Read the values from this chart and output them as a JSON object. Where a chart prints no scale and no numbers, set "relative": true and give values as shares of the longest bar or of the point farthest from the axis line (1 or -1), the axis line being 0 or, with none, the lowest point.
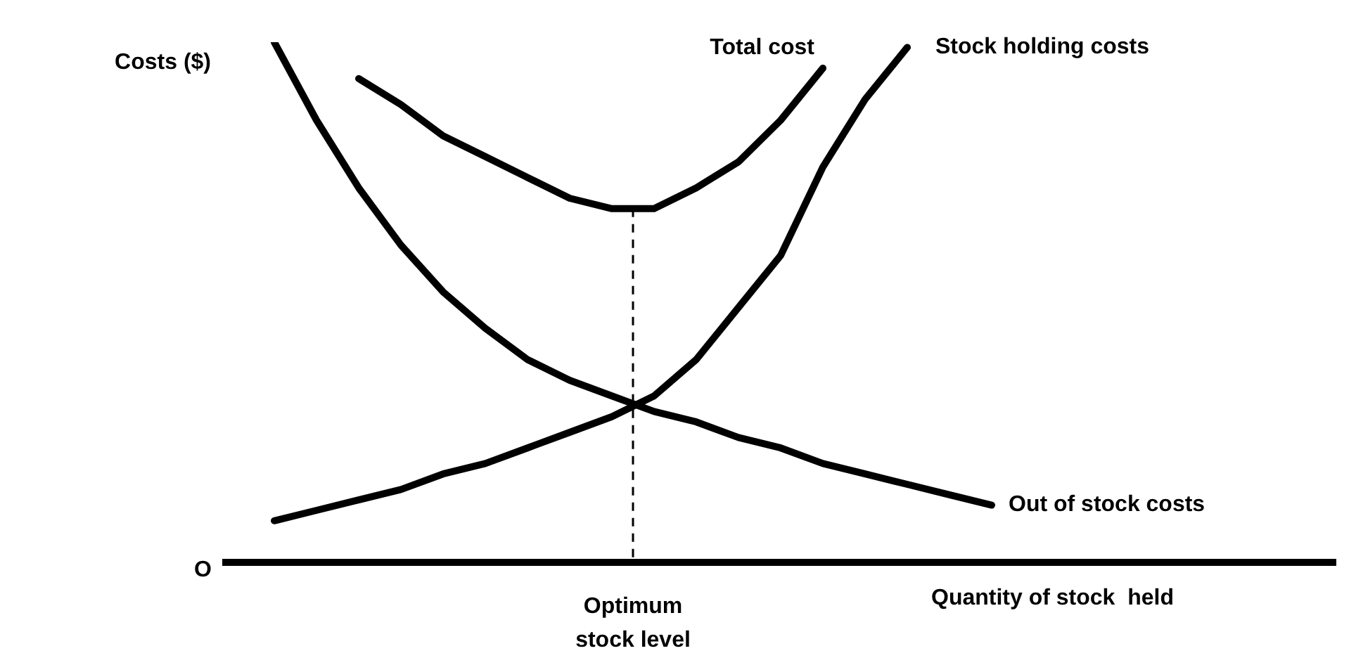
{
  "chart_data": {
    "type": "line",
    "relative": true,
    "ylabel": "Costs ($)",
    "xlabel": "Quantity of stock  held",
    "categories": [
      null,
      null,
      null,
      null,
      null,
      null,
      null,
      null,
      null,
      null,
      null,
      null,
      null,
      null,
      null,
      null,
      null,
      null
    ],
    "line_style": "solid",
    "series": [
      {
        "name": "Total cost",
        "color": "#000000",
        "values": [
          null,
          null,
          0.93,
          0.88,
          0.82,
          0.78,
          0.74,
          0.7,
          0.68,
          0.68,
          0.72,
          0.77,
          0.85,
          0.95,
          null,
          null,
          null,
          null
        ]
      },
      {
        "name": "Stock holding costs",
        "color": "#000000",
        "values": [
          0.08,
          0.1,
          0.12,
          0.14,
          0.17,
          0.19,
          0.22,
          0.25,
          0.28,
          0.32,
          0.39,
          0.49,
          0.59,
          0.76,
          0.89,
          0.99,
          null,
          null
        ]
      },
      {
        "name": "Out of stock costs",
        "color": "#000000",
        "values": [
          1,
          0.85,
          0.72,
          0.61,
          0.52,
          0.45,
          0.39,
          0.35,
          0.32,
          0.29,
          0.27,
          0.24,
          0.22,
          0.19,
          0.17,
          0.15,
          0.13,
          0.11
        ]
      }
    ],
    "annotations": [
      "O",
      "Optimum stock level"
    ]
  }
}
